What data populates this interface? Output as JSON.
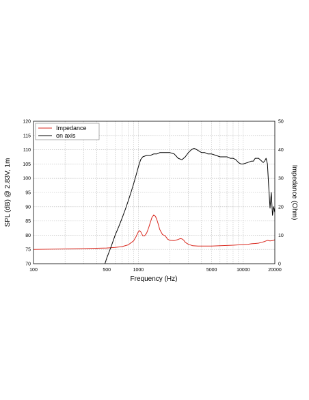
{
  "chart_data": {
    "type": "line",
    "xlabel": "Frequency (Hz)",
    "ylabel_left": "SPL (dB) @ 2.83V, 1m",
    "ylabel_right": "Impedance (Ohm)",
    "x_scale": "log",
    "xlim": [
      100,
      20000
    ],
    "ylim_left": [
      70,
      120
    ],
    "ylim_right": [
      0,
      50
    ],
    "x_tick_labels": [
      "100",
      "500",
      "1000",
      "5000",
      "10000",
      "20000"
    ],
    "x_tick_values": [
      100,
      500,
      1000,
      5000,
      10000,
      20000
    ],
    "y_left_ticks": [
      70,
      75,
      80,
      85,
      90,
      95,
      100,
      105,
      110,
      115,
      120
    ],
    "y_right_ticks": [
      0,
      10,
      20,
      30,
      40,
      50
    ],
    "grid": true,
    "legend_position": "top-left",
    "series": [
      {
        "name": "Impedance",
        "axis": "right",
        "color": "#d9261c",
        "x": [
          100,
          150,
          200,
          300,
          400,
          500,
          600,
          700,
          800,
          900,
          950,
          1000,
          1030,
          1060,
          1100,
          1150,
          1200,
          1250,
          1300,
          1350,
          1400,
          1450,
          1500,
          1550,
          1600,
          1700,
          1800,
          1900,
          2000,
          2200,
          2400,
          2500,
          2600,
          2700,
          2800,
          3000,
          3300,
          3700,
          4000,
          5000,
          6000,
          7000,
          8000,
          9000,
          10000,
          11000,
          12000,
          13000,
          14000,
          15000,
          16000,
          17000,
          18000,
          19000,
          20000
        ],
        "y": [
          5,
          5.1,
          5.2,
          5.3,
          5.4,
          5.5,
          5.7,
          6.0,
          6.6,
          8.0,
          9.5,
          11.2,
          11.6,
          11.0,
          9.8,
          9.8,
          10.8,
          12.5,
          14.5,
          16.3,
          17.1,
          16.7,
          15.5,
          13.8,
          12.0,
          10.2,
          9.8,
          8.6,
          8.2,
          8.1,
          8.5,
          8.8,
          8.7,
          8.3,
          7.5,
          6.8,
          6.3,
          6.2,
          6.2,
          6.2,
          6.3,
          6.4,
          6.5,
          6.6,
          6.7,
          6.8,
          7.0,
          7.1,
          7.2,
          7.5,
          7.8,
          8.2,
          8.0,
          8.1,
          8.4
        ]
      },
      {
        "name": "on axis",
        "axis": "left",
        "color": "#000000",
        "x": [
          480,
          500,
          550,
          600,
          650,
          700,
          750,
          800,
          850,
          900,
          950,
          1000,
          1050,
          1100,
          1200,
          1300,
          1400,
          1500,
          1600,
          1700,
          1800,
          2000,
          2200,
          2400,
          2600,
          2800,
          3000,
          3200,
          3400,
          3600,
          3800,
          4000,
          4300,
          4600,
          5000,
          5500,
          6000,
          6500,
          7000,
          7500,
          8000,
          8500,
          9000,
          9500,
          10000,
          11000,
          12000,
          12500,
          13000,
          13500,
          14000,
          14500,
          15000,
          15500,
          16000,
          16500,
          17000,
          17500,
          18000,
          18500,
          19000,
          19500,
          20000
        ],
        "y": [
          70,
          72,
          76,
          80,
          83,
          86,
          89,
          92,
          95,
          98,
          101,
          104,
          106.5,
          107.5,
          108,
          108,
          108.5,
          108.5,
          109,
          109,
          109,
          109,
          108.5,
          107,
          106.5,
          107.5,
          109,
          110,
          110.5,
          110,
          109.5,
          109,
          109,
          108.5,
          108.5,
          108,
          107.5,
          107.5,
          107.5,
          107,
          107,
          106.5,
          105.5,
          105,
          105,
          105.5,
          106,
          106,
          107,
          107,
          107,
          106.5,
          106,
          105.5,
          106,
          107,
          105,
          97,
          89.5,
          95,
          87,
          90,
          88
        ]
      }
    ]
  }
}
